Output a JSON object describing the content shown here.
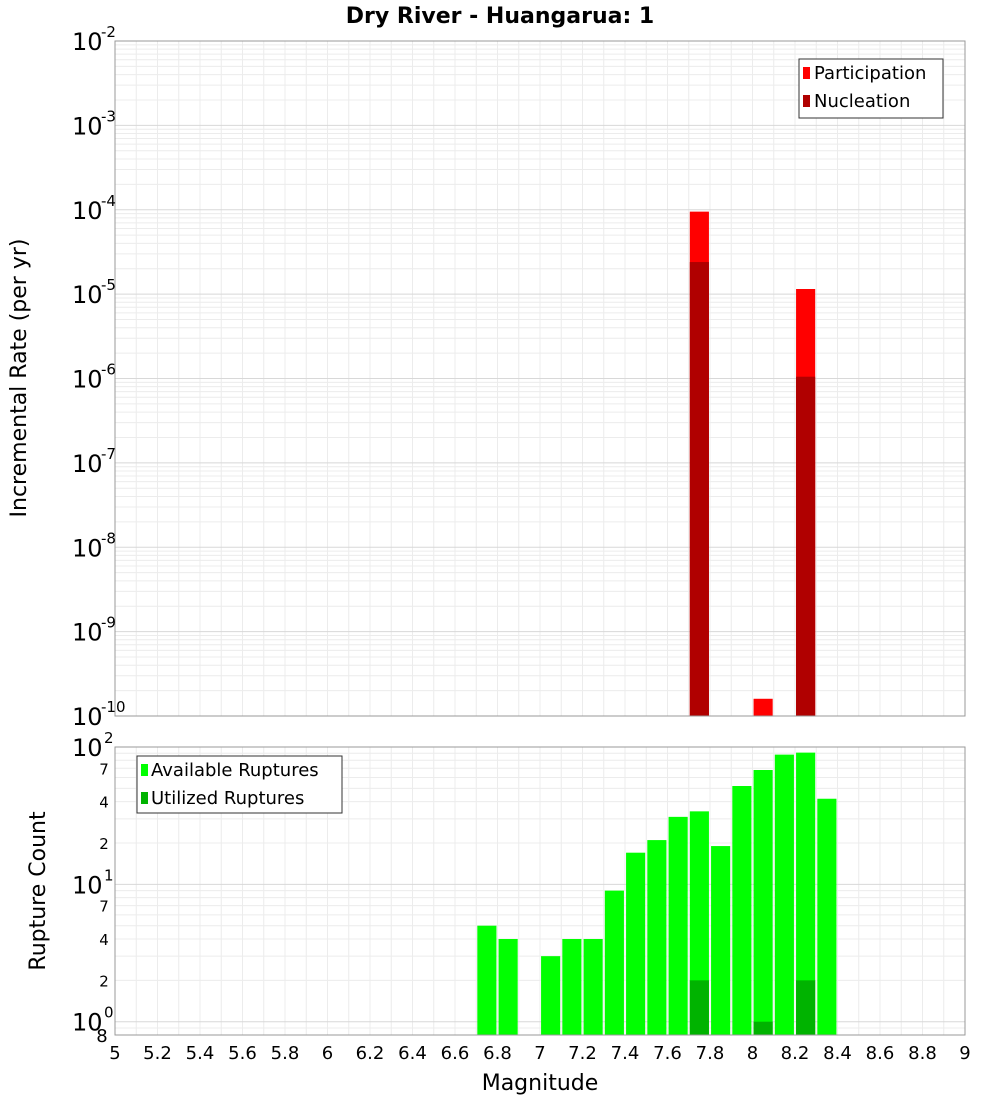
{
  "chart_data": [
    {
      "type": "bar",
      "title": "Dry River - Huangarua: 1",
      "xlabel": "Magnitude",
      "ylabel": "Incremental Rate (per yr)",
      "yscale": "log",
      "ylim": [
        1e-10,
        0.01
      ],
      "xlim": [
        5,
        9
      ],
      "bar_width": 0.09,
      "legend_position": "top-right",
      "y_ticks": [
        {
          "base": "10",
          "exp": "-10",
          "v": -10
        },
        {
          "base": "10",
          "exp": "-9",
          "v": -9
        },
        {
          "base": "10",
          "exp": "-8",
          "v": -8
        },
        {
          "base": "10",
          "exp": "-7",
          "v": -7
        },
        {
          "base": "10",
          "exp": "-6",
          "v": -6
        },
        {
          "base": "10",
          "exp": "-5",
          "v": -5
        },
        {
          "base": "10",
          "exp": "-4",
          "v": -4
        },
        {
          "base": "10",
          "exp": "-3",
          "v": -3
        },
        {
          "base": "10",
          "exp": "-2",
          "v": -2
        }
      ],
      "series": [
        {
          "name": "Participation",
          "color": "#ff0000",
          "points": [
            [
              7.75,
              9.5e-05
            ],
            [
              8.05,
              1.6e-10
            ],
            [
              8.25,
              1.15e-05
            ]
          ]
        },
        {
          "name": "Nucleation",
          "color": "#b00000",
          "points": [
            [
              7.75,
              2.4e-05
            ],
            [
              8.25,
              1.05e-06
            ]
          ]
        }
      ]
    },
    {
      "type": "bar",
      "xlabel": "Magnitude",
      "ylabel": "Rupture Count",
      "yscale": "log",
      "ylim": [
        0.8,
        100
      ],
      "xlim": [
        5,
        9
      ],
      "bar_width": 0.09,
      "legend_position": "top-left",
      "x_ticks": [
        "5",
        "5.2",
        "5.4",
        "5.6",
        "5.8",
        "6",
        "6.2",
        "6.4",
        "6.6",
        "6.8",
        "7",
        "7.2",
        "7.4",
        "7.6",
        "7.8",
        "8",
        "8.2",
        "8.4",
        "8.6",
        "8.8",
        "9"
      ],
      "y_major_ticks": [
        {
          "base": "10",
          "exp": "0",
          "v": 1
        },
        {
          "base": "10",
          "exp": "1",
          "v": 10
        },
        {
          "base": "10",
          "exp": "2",
          "v": 100
        }
      ],
      "y_minor_ticks": [
        {
          "label": "8",
          "v": 0.8
        },
        {
          "label": "2",
          "v": 2
        },
        {
          "label": "4",
          "v": 4
        },
        {
          "label": "7",
          "v": 7
        },
        {
          "label": "2",
          "v": 20
        },
        {
          "label": "4",
          "v": 40
        },
        {
          "label": "7",
          "v": 70
        }
      ],
      "series": [
        {
          "name": "Available Ruptures",
          "color": "#00ff00",
          "points": [
            [
              6.75,
              5
            ],
            [
              6.85,
              4
            ],
            [
              7.05,
              3
            ],
            [
              7.15,
              4
            ],
            [
              7.25,
              4
            ],
            [
              7.35,
              9
            ],
            [
              7.45,
              17
            ],
            [
              7.55,
              21
            ],
            [
              7.65,
              31
            ],
            [
              7.75,
              34
            ],
            [
              7.85,
              19
            ],
            [
              7.95,
              52
            ],
            [
              8.05,
              68
            ],
            [
              8.15,
              88
            ],
            [
              8.25,
              91
            ],
            [
              8.35,
              42
            ]
          ]
        },
        {
          "name": "Utilized Ruptures",
          "color": "#00b300",
          "points": [
            [
              7.75,
              2
            ],
            [
              8.05,
              1
            ],
            [
              8.25,
              2
            ]
          ]
        }
      ]
    }
  ]
}
